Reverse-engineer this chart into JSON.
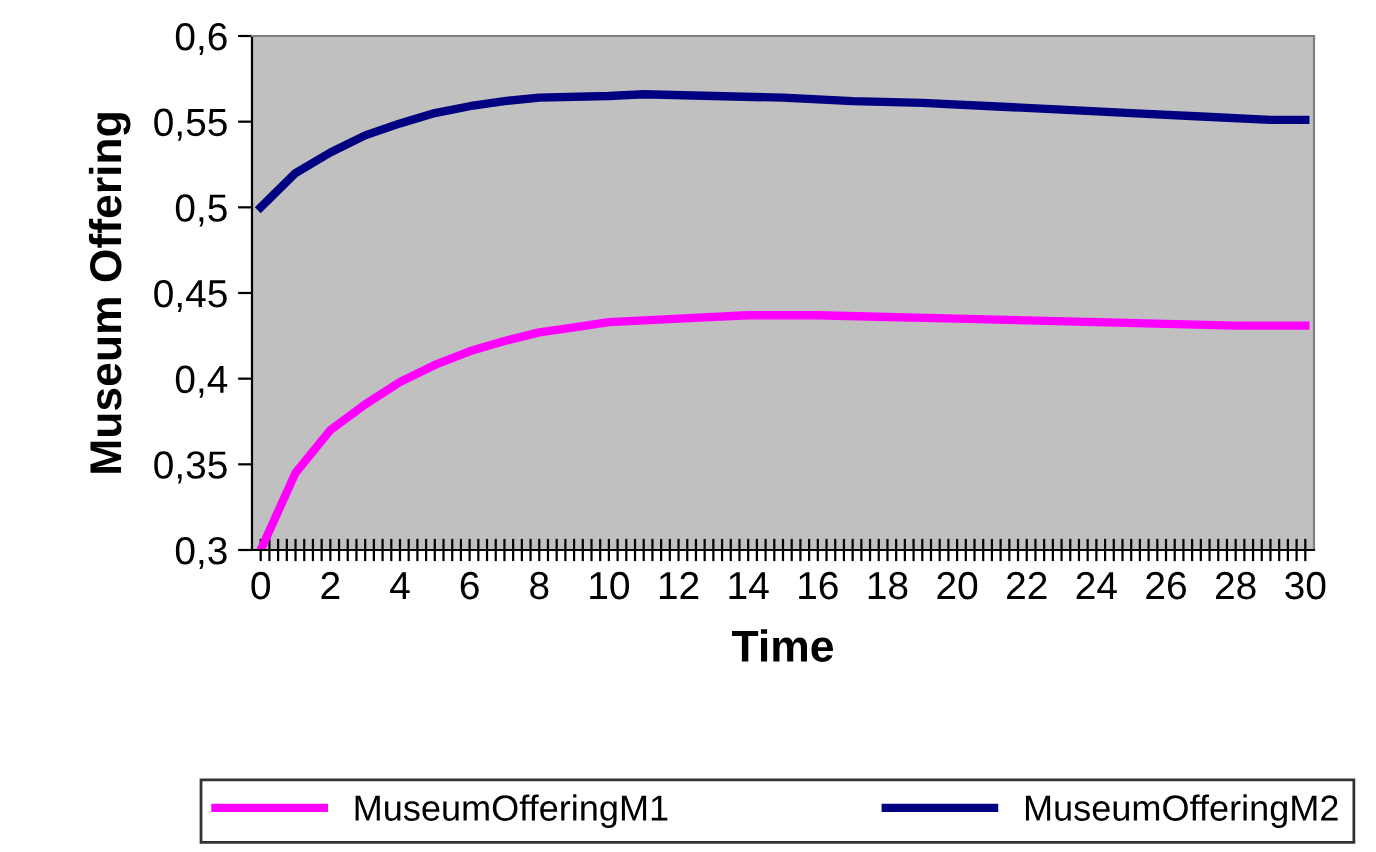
{
  "chart_data": {
    "type": "line",
    "xlabel": "Time",
    "ylabel": "Museum Offering",
    "legend": "bottom",
    "grid": false,
    "marker": "none",
    "line_style": "solid",
    "xlim": [
      -0.25,
      30.25
    ],
    "ylim": [
      0.3,
      0.6
    ],
    "yticks": [
      {
        "value": 0.3,
        "label": "0,3"
      },
      {
        "value": 0.35,
        "label": "0,35"
      },
      {
        "value": 0.4,
        "label": "0,4"
      },
      {
        "value": 0.45,
        "label": "0,45"
      },
      {
        "value": 0.5,
        "label": "0,5"
      },
      {
        "value": 0.55,
        "label": "0,55"
      },
      {
        "value": 0.6,
        "label": "0,6"
      }
    ],
    "xticks": [
      0,
      {
        "value": 0.25,
        "label": null
      },
      {
        "value": 0.5,
        "label": null
      },
      {
        "value": 0.75,
        "label": null
      },
      {
        "value": 1,
        "label": null
      },
      {
        "value": 1.25,
        "label": null
      },
      {
        "value": 1.5,
        "label": null
      },
      {
        "value": 1.75,
        "label": null
      },
      2,
      {
        "value": 2.25,
        "label": null
      },
      {
        "value": 2.5,
        "label": null
      },
      {
        "value": 2.75,
        "label": null
      },
      {
        "value": 3,
        "label": null
      },
      {
        "value": 3.25,
        "label": null
      },
      {
        "value": 3.5,
        "label": null
      },
      {
        "value": 3.75,
        "label": null
      },
      4,
      {
        "value": 4.25,
        "label": null
      },
      {
        "value": 4.5,
        "label": null
      },
      {
        "value": 4.75,
        "label": null
      },
      {
        "value": 5,
        "label": null
      },
      {
        "value": 5.25,
        "label": null
      },
      {
        "value": 5.5,
        "label": null
      },
      {
        "value": 5.75,
        "label": null
      },
      6,
      {
        "value": 6.25,
        "label": null
      },
      {
        "value": 6.5,
        "label": null
      },
      {
        "value": 6.75,
        "label": null
      },
      {
        "value": 7,
        "label": null
      },
      {
        "value": 7.25,
        "label": null
      },
      {
        "value": 7.5,
        "label": null
      },
      {
        "value": 7.75,
        "label": null
      },
      8,
      {
        "value": 8.25,
        "label": null
      },
      {
        "value": 8.5,
        "label": null
      },
      {
        "value": 8.75,
        "label": null
      },
      {
        "value": 9,
        "label": null
      },
      {
        "value": 9.25,
        "label": null
      },
      {
        "value": 9.5,
        "label": null
      },
      {
        "value": 9.75,
        "label": null
      },
      10,
      {
        "value": 10.25,
        "label": null
      },
      {
        "value": 10.5,
        "label": null
      },
      {
        "value": 10.75,
        "label": null
      },
      {
        "value": 11,
        "label": null
      },
      {
        "value": 11.25,
        "label": null
      },
      {
        "value": 11.5,
        "label": null
      },
      {
        "value": 11.75,
        "label": null
      },
      12,
      {
        "value": 12.25,
        "label": null
      },
      {
        "value": 12.5,
        "label": null
      },
      {
        "value": 12.75,
        "label": null
      },
      {
        "value": 13,
        "label": null
      },
      {
        "value": 13.25,
        "label": null
      },
      {
        "value": 13.5,
        "label": null
      },
      {
        "value": 13.75,
        "label": null
      },
      14,
      {
        "value": 14.25,
        "label": null
      },
      {
        "value": 14.5,
        "label": null
      },
      {
        "value": 14.75,
        "label": null
      },
      {
        "value": 15,
        "label": null
      },
      {
        "value": 15.25,
        "label": null
      },
      {
        "value": 15.5,
        "label": null
      },
      {
        "value": 15.75,
        "label": null
      },
      16,
      {
        "value": 16.25,
        "label": null
      },
      {
        "value": 16.5,
        "label": null
      },
      {
        "value": 16.75,
        "label": null
      },
      {
        "value": 17,
        "label": null
      },
      {
        "value": 17.25,
        "label": null
      },
      {
        "value": 17.5,
        "label": null
      },
      {
        "value": 17.75,
        "label": null
      },
      18,
      {
        "value": 18.25,
        "label": null
      },
      {
        "value": 18.5,
        "label": null
      },
      {
        "value": 18.75,
        "label": null
      },
      {
        "value": 19,
        "label": null
      },
      {
        "value": 19.25,
        "label": null
      },
      {
        "value": 19.5,
        "label": null
      },
      {
        "value": 19.75,
        "label": null
      },
      20,
      {
        "value": 20.25,
        "label": null
      },
      {
        "value": 20.5,
        "label": null
      },
      {
        "value": 20.75,
        "label": null
      },
      {
        "value": 21,
        "label": null
      },
      {
        "value": 21.25,
        "label": null
      },
      {
        "value": 21.5,
        "label": null
      },
      {
        "value": 21.75,
        "label": null
      },
      22,
      {
        "value": 22.25,
        "label": null
      },
      {
        "value": 22.5,
        "label": null
      },
      {
        "value": 22.75,
        "label": null
      },
      {
        "value": 23,
        "label": null
      },
      {
        "value": 23.25,
        "label": null
      },
      {
        "value": 23.5,
        "label": null
      },
      {
        "value": 23.75,
        "label": null
      },
      24,
      {
        "value": 24.25,
        "label": null
      },
      {
        "value": 24.5,
        "label": null
      },
      {
        "value": 24.75,
        "label": null
      },
      {
        "value": 25,
        "label": null
      },
      {
        "value": 25.25,
        "label": null
      },
      {
        "value": 25.5,
        "label": null
      },
      {
        "value": 25.75,
        "label": null
      },
      26,
      {
        "value": 26.25,
        "label": null
      },
      {
        "value": 26.5,
        "label": null
      },
      {
        "value": 26.75,
        "label": null
      },
      {
        "value": 27,
        "label": null
      },
      {
        "value": 27.25,
        "label": null
      },
      {
        "value": 27.5,
        "label": null
      },
      {
        "value": 27.75,
        "label": null
      },
      28,
      {
        "value": 28.25,
        "label": null
      },
      {
        "value": 28.5,
        "label": null
      },
      {
        "value": 28.75,
        "label": null
      },
      {
        "value": 29,
        "label": null
      },
      {
        "value": 29.25,
        "label": null
      },
      {
        "value": 29.5,
        "label": null
      },
      {
        "value": 29.75,
        "label": null
      },
      30
    ],
    "series": [
      {
        "name": "MuseumOfferingM1",
        "color": "#ff00ff",
        "x": [
          0,
          1,
          2,
          3,
          4,
          5,
          6,
          7,
          8,
          9,
          10,
          12,
          14,
          16,
          18,
          20,
          22,
          24,
          26,
          28,
          30
        ],
        "values": [
          0.3,
          0.345,
          0.37,
          0.385,
          0.398,
          0.408,
          0.416,
          0.422,
          0.427,
          0.43,
          0.433,
          0.435,
          0.437,
          0.437,
          0.436,
          0.435,
          0.434,
          0.433,
          0.432,
          0.431,
          0.431
        ]
      },
      {
        "name": "MuseumOfferingM2",
        "color": "#000080",
        "x": [
          0,
          1,
          2,
          3,
          4,
          5,
          6,
          7,
          8,
          10,
          11,
          13,
          15,
          17,
          19,
          21,
          23,
          25,
          27,
          29,
          30
        ],
        "values": [
          0.5,
          0.52,
          0.532,
          0.542,
          0.549,
          0.555,
          0.559,
          0.562,
          0.564,
          0.565,
          0.566,
          0.565,
          0.564,
          0.562,
          0.561,
          0.559,
          0.557,
          0.555,
          0.553,
          0.551,
          0.551
        ]
      }
    ]
  }
}
